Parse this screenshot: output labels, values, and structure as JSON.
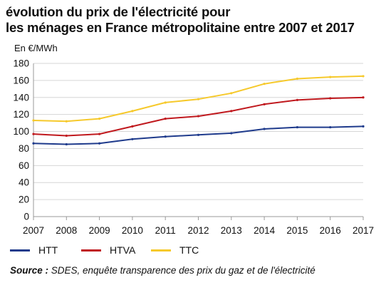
{
  "title": {
    "line1": "évolution du prix de l'électricité pour",
    "line2": "les ménages en France métropolitaine entre 2007 et 2017"
  },
  "unit_label": "En €/MWh",
  "source": {
    "label": "Source :",
    "text": " SDES, enquête transparence des prix du gaz et de l'électricité"
  },
  "chart_data": {
    "type": "line",
    "title": "évolution du prix de l'électricité pour les ménages en France métropolitaine entre 2007 et 2017",
    "xlabel": "",
    "ylabel": "En €/MWh",
    "x": [
      "2007",
      "2008",
      "2009",
      "2010",
      "2011",
      "2012",
      "2013",
      "2014",
      "2015",
      "2016",
      "2017"
    ],
    "ylim": [
      0,
      180
    ],
    "yticks": [
      0,
      20,
      40,
      60,
      80,
      100,
      120,
      140,
      160,
      180
    ],
    "grid": true,
    "legend_position": "bottom",
    "series": [
      {
        "name": "HTT",
        "color": "#1f3b8c",
        "values": [
          86,
          85,
          86,
          91,
          94,
          96,
          98,
          103,
          105,
          105,
          106
        ]
      },
      {
        "name": "HTVA",
        "color": "#c0191e",
        "values": [
          97,
          95,
          97,
          106,
          115,
          118,
          124,
          132,
          137,
          139,
          140
        ]
      },
      {
        "name": "TTC",
        "color": "#f6c92b",
        "values": [
          113,
          112,
          115,
          124,
          134,
          138,
          145,
          156,
          162,
          164,
          165
        ]
      }
    ]
  }
}
